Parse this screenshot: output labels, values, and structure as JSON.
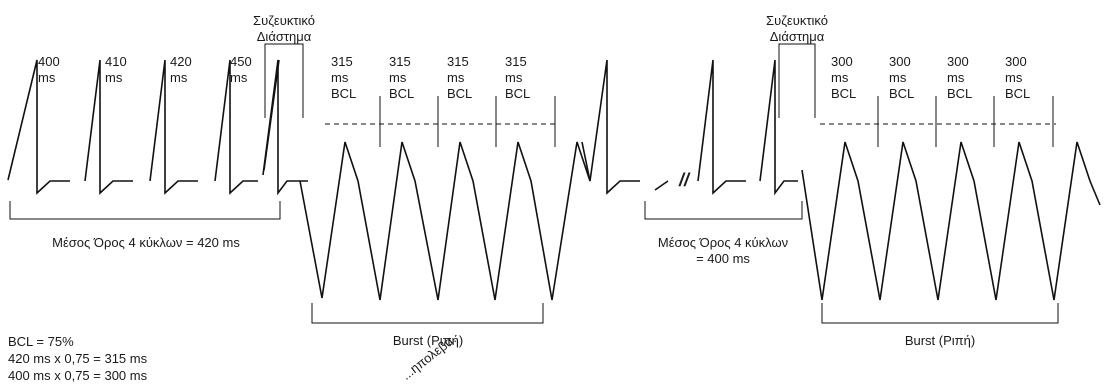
{
  "figure": {
    "coupling_label_line1": "Συζευκτικό",
    "coupling_label_line2": "Διάστημα",
    "intervals": [
      {
        "value": "400",
        "unit": "ms"
      },
      {
        "value": "410",
        "unit": "ms"
      },
      {
        "value": "420",
        "unit": "ms"
      },
      {
        "value": "450",
        "unit": "ms"
      }
    ],
    "burst1_cycles": [
      {
        "value": "315",
        "unit": "ms",
        "tag": "BCL"
      },
      {
        "value": "315",
        "unit": "ms",
        "tag": "BCL"
      },
      {
        "value": "315",
        "unit": "ms",
        "tag": "BCL"
      },
      {
        "value": "315",
        "unit": "ms",
        "tag": "BCL"
      }
    ],
    "burst2_cycles": [
      {
        "value": "300",
        "unit": "ms",
        "tag": "BCL"
      },
      {
        "value": "300",
        "unit": "ms",
        "tag": "BCL"
      },
      {
        "value": "300",
        "unit": "ms",
        "tag": "BCL"
      },
      {
        "value": "300",
        "unit": "ms",
        "tag": "BCL"
      }
    ],
    "avg1_label": "Μέσος Όρος 4 κύκλων = 420 ms",
    "avg2_line1": "Μέσος Όρος 4 κύκλων",
    "avg2_line2": "= 400 ms",
    "burst_label": "Burst (Ριπή)",
    "break_mark": "//",
    "formula_lines": [
      "BCL = 75%",
      "420 ms x 0,75 = 315 ms",
      "400 ms x 0,75 = 300 ms"
    ],
    "watermark": "...ηπολεβα."
  }
}
